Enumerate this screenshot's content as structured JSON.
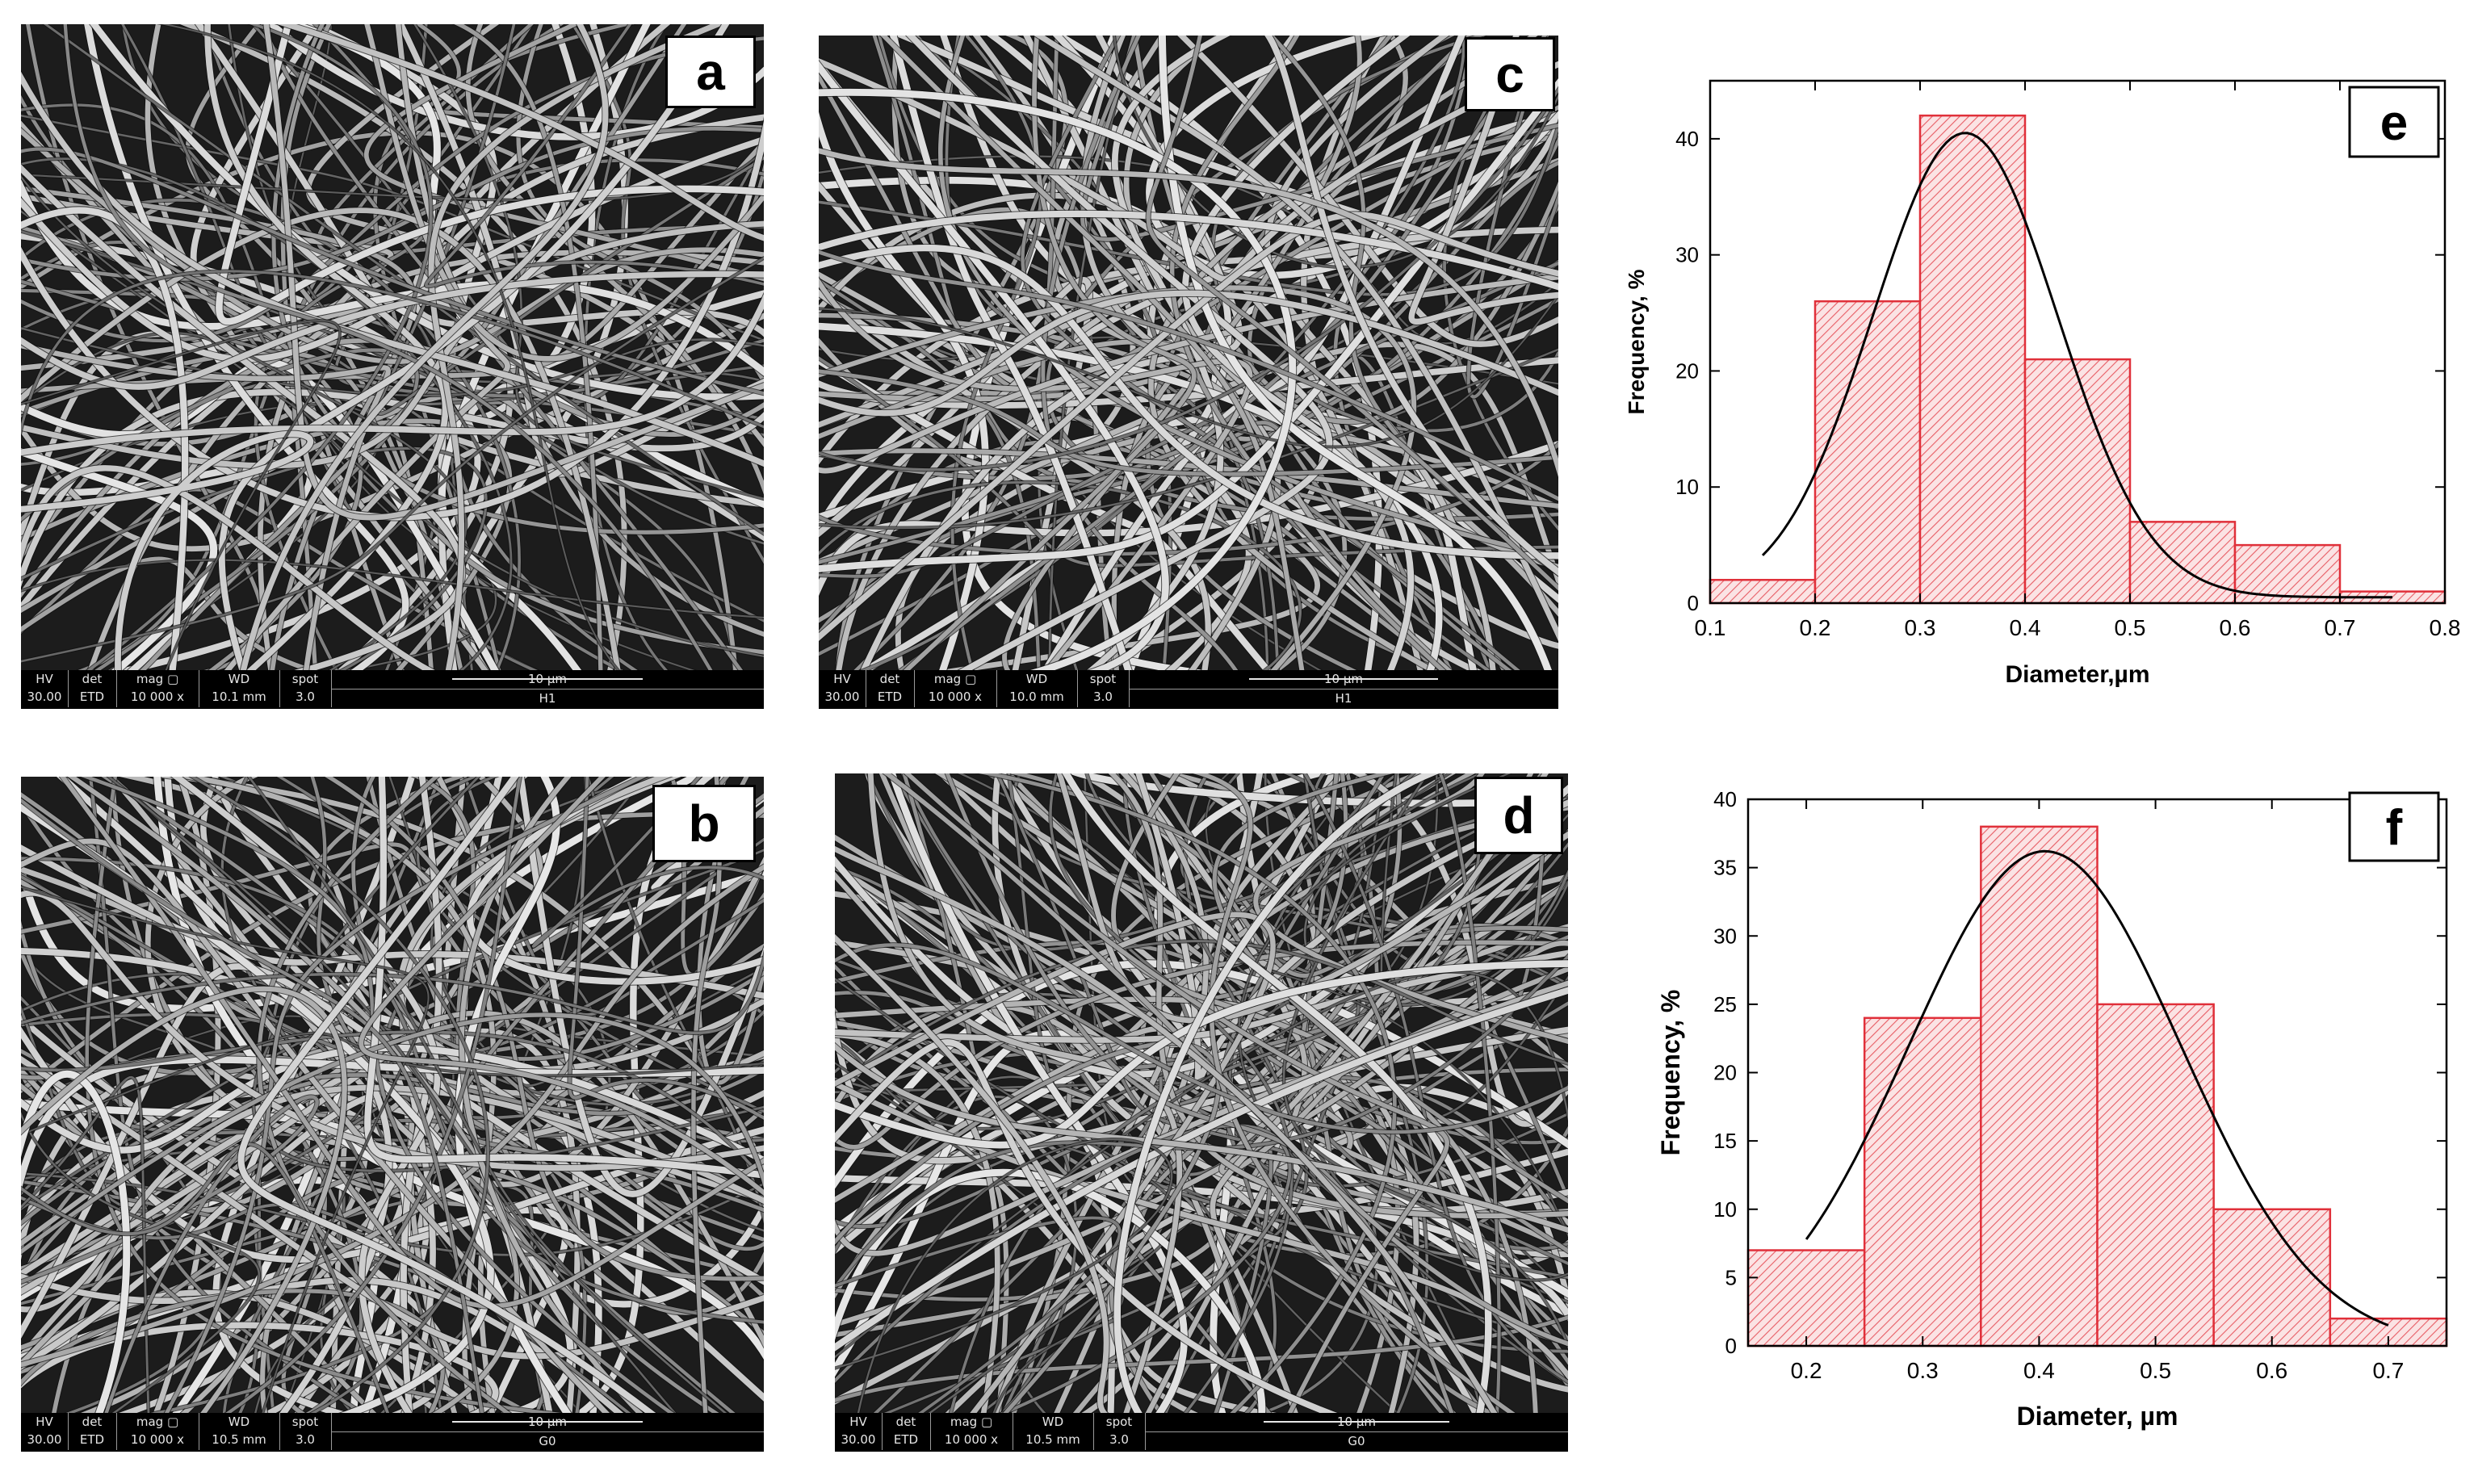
{
  "sem_panels": [
    {
      "id": "a",
      "label": "a",
      "info": {
        "hv": "HV",
        "hv_value": "30.00 kV",
        "det": "det",
        "det_value": "ETD",
        "mag": "mag ▢",
        "mag_value": "10 000 x",
        "wd": "WD",
        "wd_value": "10.1 mm",
        "spot": "spot",
        "spot_value": "3.0",
        "scale": "10 µm",
        "sample": "H1"
      }
    },
    {
      "id": "b",
      "label": "b",
      "info": {
        "hv": "HV",
        "hv_value": "30.00 kV",
        "det": "det",
        "det_value": "ETD",
        "mag": "mag ▢",
        "mag_value": "10 000 x",
        "wd": "WD",
        "wd_value": "10.5 mm",
        "spot": "spot",
        "spot_value": "3.0",
        "scale": "10 µm",
        "sample": "G0"
      }
    },
    {
      "id": "c",
      "label": "c",
      "info": {
        "hv": "HV",
        "hv_value": "30.00 kV",
        "det": "det",
        "det_value": "ETD",
        "mag": "mag ▢",
        "mag_value": "10 000 x",
        "wd": "WD",
        "wd_value": "10.0 mm",
        "spot": "spot",
        "spot_value": "3.0",
        "scale": "10 µm",
        "sample": "H1"
      }
    },
    {
      "id": "d",
      "label": "d",
      "info": {
        "hv": "HV",
        "hv_value": "30.00 kV",
        "det": "det",
        "det_value": "ETD",
        "mag": "mag ▢",
        "mag_value": "10 000 x",
        "wd": "WD",
        "wd_value": "10.5 mm",
        "spot": "spot",
        "spot_value": "3.0",
        "scale": "10 µm",
        "sample": "G0"
      }
    }
  ],
  "chart_data": [
    {
      "id": "e",
      "label": "e",
      "type": "bar",
      "xlabel": "Diameter,µm",
      "ylabel": "Frequency, %",
      "xlim": [
        0.1,
        0.8
      ],
      "ylim": [
        0,
        45
      ],
      "xticks": [
        "0.1",
        "0.2",
        "0.3",
        "0.4",
        "0.5",
        "0.6",
        "0.7",
        "0.8"
      ],
      "yticks": [
        "0",
        "10",
        "20",
        "30",
        "40"
      ],
      "xtick_values": [
        0.1,
        0.2,
        0.3,
        0.4,
        0.5,
        0.6,
        0.7,
        0.8
      ],
      "ytick_values": [
        0,
        10,
        20,
        30,
        40
      ],
      "bins": [
        {
          "x0": 0.1,
          "x1": 0.2,
          "value": 2
        },
        {
          "x0": 0.2,
          "x1": 0.3,
          "value": 26
        },
        {
          "x0": 0.3,
          "x1": 0.4,
          "value": 42
        },
        {
          "x0": 0.4,
          "x1": 0.5,
          "value": 21
        },
        {
          "x0": 0.5,
          "x1": 0.6,
          "value": 7
        },
        {
          "x0": 0.6,
          "x1": 0.7,
          "value": 5
        },
        {
          "x0": 0.7,
          "x1": 0.8,
          "value": 1
        }
      ],
      "fit": {
        "mean": 0.343,
        "sigma": 0.088,
        "amplitude": 40.5,
        "baseline": 0.5,
        "x_range": [
          0.15,
          0.75
        ]
      },
      "bar_color": "#e0303a",
      "fit_color": "#000000"
    },
    {
      "id": "f",
      "label": "f",
      "type": "bar",
      "xlabel": "Diameter, µm",
      "ylabel": "Frequency, %",
      "xlim": [
        0.15,
        0.75
      ],
      "ylim": [
        0,
        40
      ],
      "xticks": [
        "0.2",
        "0.3",
        "0.4",
        "0.5",
        "0.6",
        "0.7"
      ],
      "yticks": [
        "0",
        "5",
        "10",
        "15",
        "20",
        "25",
        "30",
        "35",
        "40"
      ],
      "xtick_values": [
        0.2,
        0.3,
        0.4,
        0.5,
        0.6,
        0.7
      ],
      "ytick_values": [
        0,
        5,
        10,
        15,
        20,
        25,
        30,
        35,
        40
      ],
      "bins": [
        {
          "x0": 0.15,
          "x1": 0.25,
          "value": 7
        },
        {
          "x0": 0.25,
          "x1": 0.35,
          "value": 24
        },
        {
          "x0": 0.35,
          "x1": 0.45,
          "value": 38
        },
        {
          "x0": 0.45,
          "x1": 0.55,
          "value": 25
        },
        {
          "x0": 0.55,
          "x1": 0.65,
          "value": 10
        },
        {
          "x0": 0.65,
          "x1": 0.75,
          "value": 2
        }
      ],
      "fit": {
        "mean": 0.405,
        "sigma": 0.117,
        "amplitude": 36.2,
        "baseline": 0,
        "x_range": [
          0.2,
          0.7
        ]
      },
      "bar_color": "#e0303a",
      "fit_color": "#000000"
    }
  ]
}
